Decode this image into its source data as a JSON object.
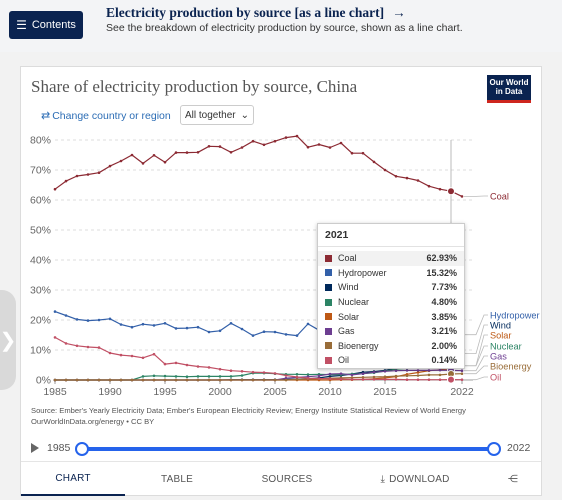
{
  "topbar": {
    "contents_label": "Contents",
    "related_title": "Electricity production by source [as a line chart]",
    "related_arrow": "→",
    "related_subtitle": "See the breakdown of electricity production by source, shown as a line chart."
  },
  "controls": {
    "change_country": "Change country or region",
    "dropdown_value": "All together"
  },
  "logo": {
    "line1": "Our World",
    "line2": "in Data"
  },
  "chart_data": {
    "type": "line",
    "title": "Share of electricity production by source, China",
    "xlabel": "",
    "ylabel": "",
    "ylim": [
      0,
      80
    ],
    "xlim": [
      1985,
      2023
    ],
    "y_ticks": [
      "0%",
      "10%",
      "20%",
      "30%",
      "40%",
      "50%",
      "60%",
      "70%",
      "80%"
    ],
    "x_ticks": [
      "1985",
      "1990",
      "1995",
      "2000",
      "2005",
      "2010",
      "2015",
      "2022"
    ],
    "grid": true,
    "legend": "right",
    "x": [
      1985,
      1986,
      1987,
      1988,
      1989,
      1990,
      1991,
      1992,
      1993,
      1994,
      1995,
      1996,
      1997,
      1998,
      1999,
      2000,
      2001,
      2002,
      2003,
      2004,
      2005,
      2006,
      2007,
      2008,
      2009,
      2010,
      2011,
      2012,
      2013,
      2014,
      2015,
      2016,
      2017,
      2018,
      2019,
      2020,
      2021,
      2022
    ],
    "series": [
      {
        "name": "Coal",
        "color": "#8c2a33",
        "values": [
          63.6,
          66.3,
          68.0,
          68.5,
          69.1,
          71.3,
          73.0,
          75.0,
          72.2,
          74.9,
          72.6,
          75.8,
          75.8,
          75.9,
          77.9,
          77.8,
          75.9,
          77.5,
          79.6,
          78.4,
          79.6,
          80.8,
          81.3,
          77.6,
          78.5,
          77.5,
          79.0,
          75.6,
          75.6,
          72.7,
          70.0,
          67.9,
          67.3,
          66.5,
          64.6,
          63.6,
          62.93,
          61.2
        ]
      },
      {
        "name": "Hydropower",
        "color": "#3360a9",
        "values": [
          22.8,
          21.5,
          20.2,
          19.8,
          20.0,
          20.4,
          18.5,
          17.6,
          18.6,
          18.2,
          18.9,
          17.2,
          17.3,
          17.6,
          16.0,
          16.4,
          18.9,
          17.0,
          14.8,
          16.1,
          16.0,
          15.2,
          14.8,
          18.7,
          16.6,
          17.1,
          14.8,
          17.4,
          16.8,
          19.0,
          19.7,
          19.4,
          17.7,
          17.0,
          17.5,
          17.7,
          15.32,
          15.1
        ]
      },
      {
        "name": "Wind",
        "color": "#00295b",
        "values": [
          0,
          0,
          0,
          0,
          0,
          0,
          0,
          0,
          0,
          0,
          0,
          0,
          0,
          0,
          0,
          0,
          0.1,
          0.1,
          0.1,
          0.1,
          0.1,
          0.2,
          0.3,
          0.4,
          0.7,
          1.2,
          1.5,
          2.0,
          2.6,
          2.8,
          3.2,
          4.0,
          4.8,
          5.2,
          5.5,
          6.1,
          7.73,
          8.8
        ]
      },
      {
        "name": "Nuclear",
        "color": "#2c8465",
        "values": [
          0,
          0,
          0,
          0,
          0,
          0,
          0,
          0,
          1.2,
          1.4,
          1.3,
          1.2,
          1.1,
          1.2,
          1.2,
          1.2,
          1.2,
          1.5,
          2.3,
          2.3,
          2.1,
          1.9,
          1.9,
          1.8,
          1.9,
          1.8,
          1.8,
          2.0,
          2.1,
          2.4,
          3.0,
          3.6,
          3.9,
          4.2,
          4.7,
          4.8,
          4.8,
          4.7
        ]
      },
      {
        "name": "Solar",
        "color": "#be5915",
        "values": [
          0,
          0,
          0,
          0,
          0,
          0,
          0,
          0,
          0,
          0,
          0,
          0,
          0,
          0,
          0,
          0,
          0,
          0,
          0,
          0,
          0,
          0,
          0,
          0,
          0,
          0,
          0.1,
          0.1,
          0.2,
          0.4,
          0.7,
          1.1,
          1.9,
          2.5,
          3.1,
          3.4,
          3.85,
          4.8
        ]
      },
      {
        "name": "Gas",
        "color": "#6d3e91",
        "values": [
          0,
          0,
          0,
          0,
          0,
          0,
          0,
          0,
          0,
          0,
          0,
          0,
          0,
          0,
          0,
          0,
          0,
          0,
          0,
          0,
          0,
          0.6,
          0.9,
          1.1,
          1.4,
          2.0,
          2.1,
          1.7,
          2.1,
          2.6,
          2.9,
          3.1,
          3.2,
          3.2,
          3.2,
          3.3,
          3.21,
          3.1
        ]
      },
      {
        "name": "Bioenergy",
        "color": "#996d39",
        "values": [
          0,
          0,
          0,
          0,
          0,
          0,
          0,
          0,
          0,
          0,
          0,
          0,
          0,
          0,
          0,
          0,
          0,
          0,
          0,
          0,
          0,
          0,
          0.2,
          0.3,
          0.4,
          0.6,
          0.7,
          0.8,
          0.9,
          1.0,
          1.1,
          1.3,
          1.4,
          1.5,
          1.7,
          1.7,
          2.0,
          2.1
        ]
      },
      {
        "name": "Oil",
        "color": "#c15065",
        "values": [
          14.2,
          12.2,
          11.4,
          11.0,
          10.8,
          9.0,
          8.3,
          8.0,
          7.4,
          8.6,
          5.3,
          5.7,
          5.0,
          4.5,
          4.2,
          3.6,
          3.1,
          2.9,
          2.6,
          2.5,
          2.2,
          1.5,
          1.0,
          0.6,
          0.5,
          0.4,
          0.3,
          0.2,
          0.2,
          0.2,
          0.2,
          0.2,
          0.1,
          0.1,
          0.1,
          0.1,
          0.14,
          0.1
        ]
      }
    ],
    "hover_year": 2021
  },
  "tooltip": {
    "year": "2021",
    "rows": [
      {
        "name": "Coal",
        "value": "62.93%"
      },
      {
        "name": "Hydropower",
        "value": "15.32%"
      },
      {
        "name": "Wind",
        "value": "7.73%"
      },
      {
        "name": "Nuclear",
        "value": "4.80%"
      },
      {
        "name": "Solar",
        "value": "3.85%"
      },
      {
        "name": "Gas",
        "value": "3.21%"
      },
      {
        "name": "Bioenergy",
        "value": "2.00%"
      },
      {
        "name": "Oil",
        "value": "0.14%"
      }
    ]
  },
  "source": {
    "line1": "Source: Ember's Yearly Electricity Data; Ember's European Electricity Review; Energy Institute Statistical Review of World Energy",
    "line2": "OurWorldInData.org/energy • CC BY"
  },
  "timeline": {
    "start": "1985",
    "end": "2022",
    "start_value": 1985,
    "end_value": 2022
  },
  "tabs": {
    "chart": "CHART",
    "table": "TABLE",
    "sources": "SOURCES",
    "download": "DOWNLOAD"
  }
}
